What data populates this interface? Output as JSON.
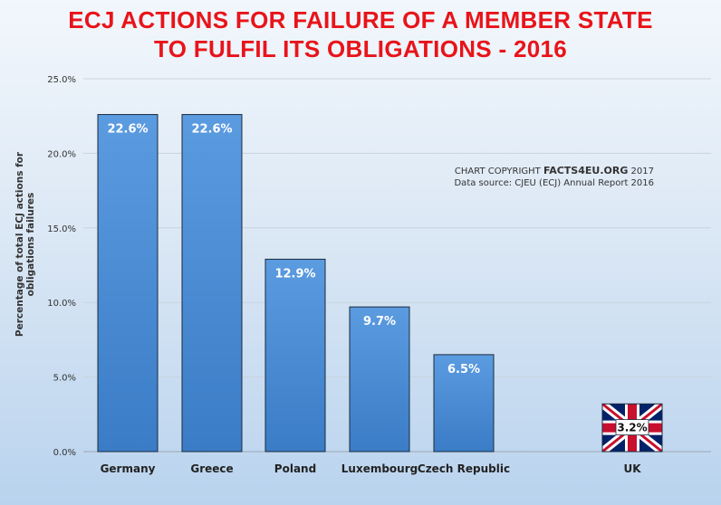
{
  "title_line1": "ECJ ACTIONS FOR FAILURE OF A MEMBER STATE",
  "title_line2": "TO FULFIL ITS OBLIGATIONS - 2016",
  "copyright_prefix": "CHART COPYRIGHT ",
  "copyright_brand": "FACTS4EU.ORG",
  "copyright_year": " 2017",
  "source": "Data source: CJEU (ECJ) Annual Report 2016",
  "colors": {
    "bar": "#4a8bd0",
    "title": "#e8141a"
  },
  "chart_data": {
    "type": "bar",
    "title": "ECJ ACTIONS FOR FAILURE OF A MEMBER STATE TO FULFIL ITS OBLIGATIONS - 2016",
    "ylabel": "Percentage of total ECJ actions for obligations failures",
    "xlabel": "",
    "ylim": [
      0,
      25
    ],
    "yticks": [
      0,
      5,
      10,
      15,
      20,
      25
    ],
    "ytick_labels": [
      "0.0%",
      "5.0%",
      "10.0%",
      "15.0%",
      "20.0%",
      "25.0%"
    ],
    "grid": true,
    "categories": [
      "Germany",
      "Greece",
      "Poland",
      "Luxembourg",
      "Czech Republic",
      "UK"
    ],
    "values": [
      22.6,
      22.6,
      12.9,
      9.7,
      6.5,
      3.2
    ],
    "data_labels": [
      "22.6%",
      "22.6%",
      "12.9%",
      "9.7%",
      "6.5%",
      "3.2%"
    ],
    "special_bar": {
      "category": "UK",
      "fill": "union-jack-flag"
    }
  }
}
